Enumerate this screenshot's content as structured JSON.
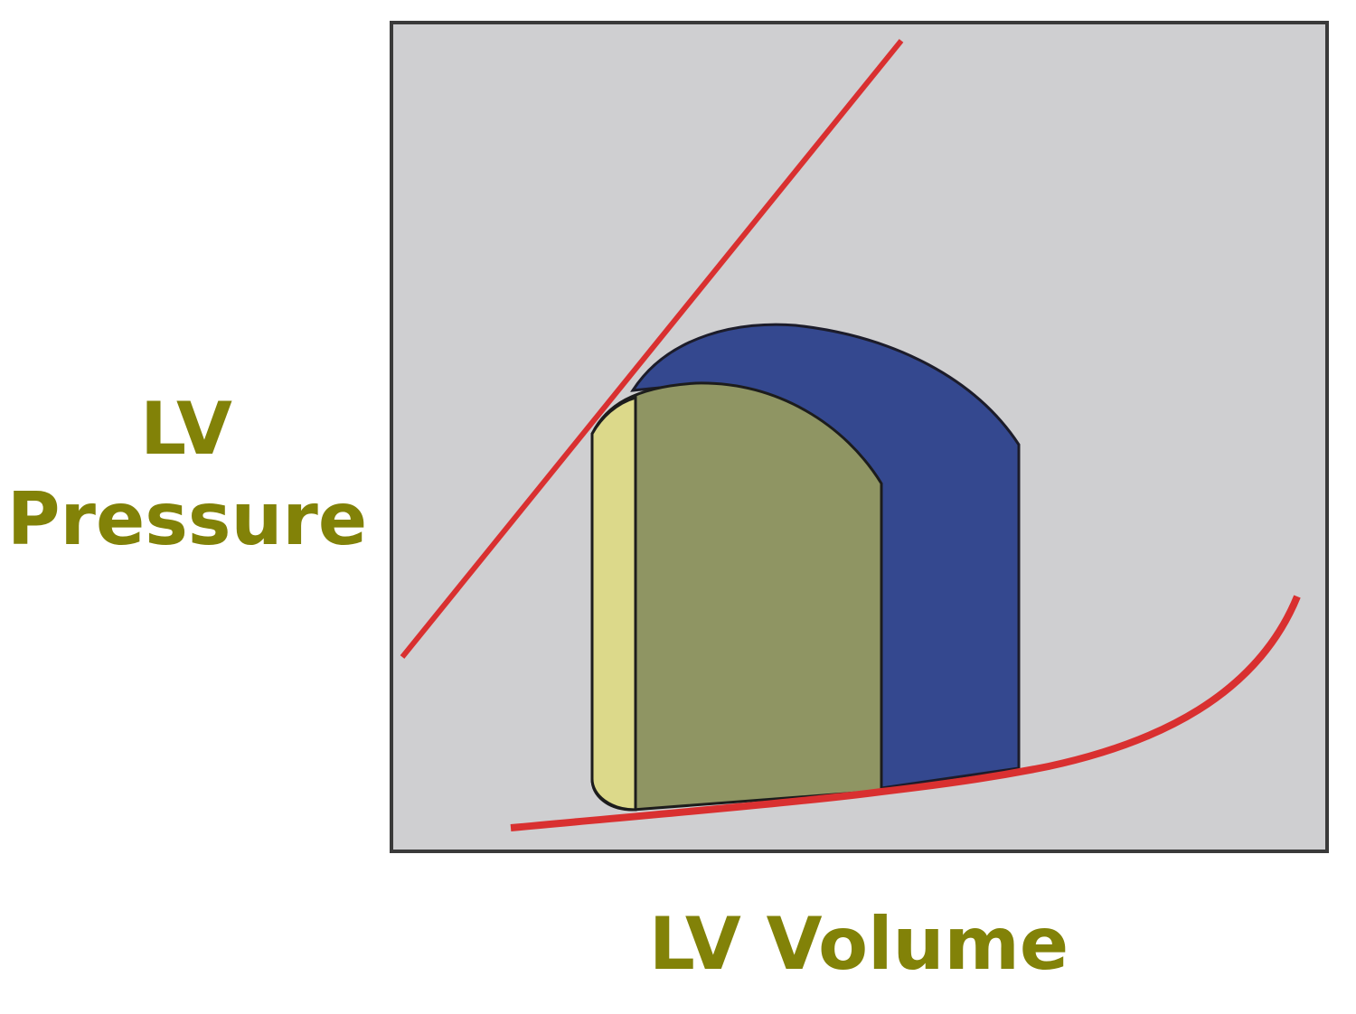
{
  "diagram": {
    "y_label_lines": [
      "LV",
      "Pressure"
    ],
    "x_label": "LV Volume"
  }
}
